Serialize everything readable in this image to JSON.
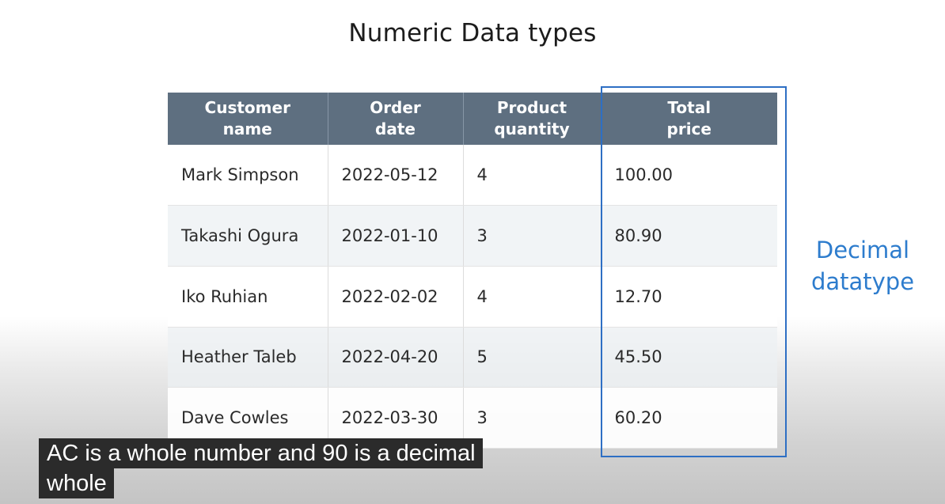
{
  "slide": {
    "title": "Numeric Data types",
    "annotation_line1": "Decimal",
    "annotation_line2": "datatype",
    "highlight_color": "#2e6fc4",
    "annotation_color": "#2d7ccd",
    "header_color": "#5e6f80"
  },
  "table": {
    "headers": [
      {
        "line1": "Customer",
        "line2": "name"
      },
      {
        "line1": "Order",
        "line2": "date"
      },
      {
        "line1": "Product",
        "line2": "quantity"
      },
      {
        "line1": "Total",
        "line2": "price"
      }
    ],
    "rows": [
      [
        "Mark Simpson",
        "2022-05-12",
        "4",
        "100.00"
      ],
      [
        "Takashi Ogura",
        "2022-01-10",
        "3",
        "80.90"
      ],
      [
        "Iko Ruhian",
        "2022-02-02",
        "4",
        "12.70"
      ],
      [
        "Heather Taleb",
        "2022-04-20",
        "5",
        "45.50"
      ],
      [
        "Dave Cowles",
        "2022-03-30",
        "3",
        "60.20"
      ]
    ]
  },
  "captions": {
    "line1": "AC is a whole number and 90 is a decimal",
    "line2": "whole"
  }
}
